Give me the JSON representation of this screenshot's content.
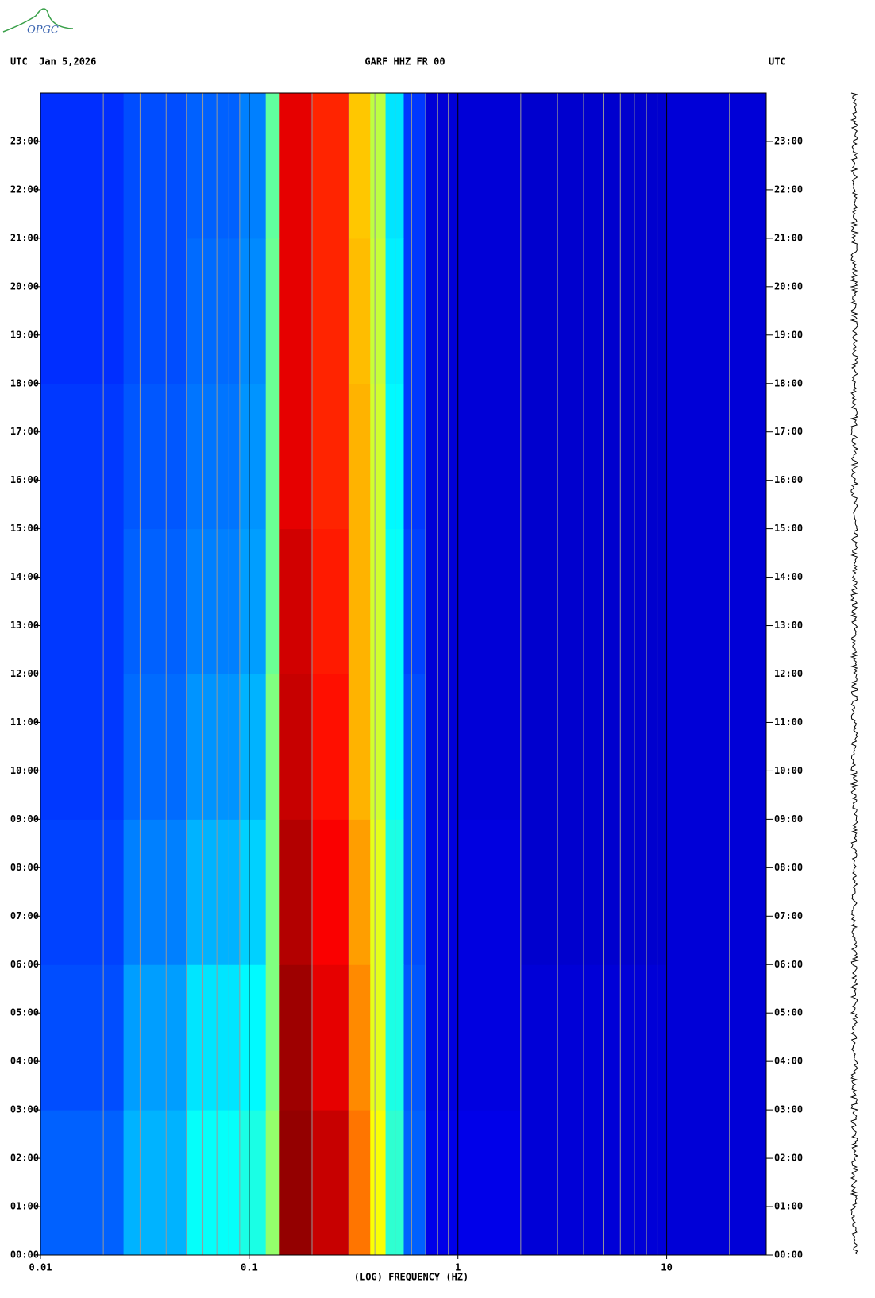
{
  "header": {
    "logo": "OPGC",
    "left": "UTC  Jan 5,2026",
    "center": "GARF HHZ FR 00",
    "right": "UTC"
  },
  "chart_data": {
    "type": "heatmap",
    "xlabel": "(LOG) FREQUENCY (HZ)",
    "xscale": "log",
    "colormap": "jet",
    "xlim": [
      0.01,
      30
    ],
    "xticks": [
      0.01,
      0.1,
      1,
      10
    ],
    "xminorticks": [
      0.02,
      0.03,
      0.04,
      0.05,
      0.06,
      0.07,
      0.08,
      0.09,
      0.2,
      0.3,
      0.4,
      0.5,
      0.6,
      0.7,
      0.8,
      0.9,
      2,
      3,
      4,
      5,
      6,
      7,
      8,
      9,
      20
    ],
    "ylim": [
      0,
      24
    ],
    "yticks": [
      {
        "value": 0,
        "label": "00:00"
      },
      {
        "value": 1,
        "label": "01:00"
      },
      {
        "value": 2,
        "label": "02:00"
      },
      {
        "value": 3,
        "label": "03:00"
      },
      {
        "value": 4,
        "label": "04:00"
      },
      {
        "value": 5,
        "label": "05:00"
      },
      {
        "value": 6,
        "label": "06:00"
      },
      {
        "value": 7,
        "label": "07:00"
      },
      {
        "value": 8,
        "label": "08:00"
      },
      {
        "value": 9,
        "label": "09:00"
      },
      {
        "value": 10,
        "label": "10:00"
      },
      {
        "value": 11,
        "label": "11:00"
      },
      {
        "value": 12,
        "label": "12:00"
      },
      {
        "value": 13,
        "label": "13:00"
      },
      {
        "value": 14,
        "label": "14:00"
      },
      {
        "value": 15,
        "label": "15:00"
      },
      {
        "value": 16,
        "label": "16:00"
      },
      {
        "value": 17,
        "label": "17:00"
      },
      {
        "value": 18,
        "label": "18:00"
      },
      {
        "value": 19,
        "label": "19:00"
      },
      {
        "value": 20,
        "label": "20:00"
      },
      {
        "value": 21,
        "label": "21:00"
      },
      {
        "value": 22,
        "label": "22:00"
      },
      {
        "value": 23,
        "label": "23:00"
      }
    ],
    "x_edges": [
      0.01,
      0.025,
      0.05,
      0.09,
      0.12,
      0.14,
      0.2,
      0.3,
      0.38,
      0.45,
      0.55,
      0.7,
      2,
      10,
      30
    ],
    "y_edges": [
      0,
      3,
      6,
      9,
      12,
      15,
      18,
      21,
      24
    ],
    "z": [
      [
        0.22,
        0.3,
        0.38,
        0.4,
        0.52,
        0.98,
        0.93,
        0.76,
        0.62,
        0.42,
        0.22,
        0.1,
        0.08,
        0.08
      ],
      [
        0.2,
        0.28,
        0.35,
        0.37,
        0.5,
        0.97,
        0.9,
        0.74,
        0.6,
        0.4,
        0.21,
        0.09,
        0.08,
        0.08
      ],
      [
        0.19,
        0.25,
        0.3,
        0.33,
        0.5,
        0.95,
        0.88,
        0.72,
        0.6,
        0.4,
        0.2,
        0.09,
        0.07,
        0.08
      ],
      [
        0.18,
        0.23,
        0.27,
        0.3,
        0.5,
        0.93,
        0.86,
        0.7,
        0.58,
        0.38,
        0.2,
        0.08,
        0.07,
        0.08
      ],
      [
        0.18,
        0.22,
        0.25,
        0.28,
        0.48,
        0.92,
        0.85,
        0.7,
        0.58,
        0.38,
        0.19,
        0.08,
        0.07,
        0.08
      ],
      [
        0.18,
        0.21,
        0.24,
        0.27,
        0.48,
        0.9,
        0.84,
        0.7,
        0.58,
        0.37,
        0.18,
        0.08,
        0.07,
        0.08
      ],
      [
        0.17,
        0.2,
        0.23,
        0.26,
        0.48,
        0.9,
        0.84,
        0.69,
        0.57,
        0.36,
        0.18,
        0.08,
        0.07,
        0.08
      ],
      [
        0.17,
        0.2,
        0.22,
        0.25,
        0.47,
        0.9,
        0.84,
        0.68,
        0.56,
        0.35,
        0.18,
        0.08,
        0.07,
        0.08
      ]
    ]
  }
}
